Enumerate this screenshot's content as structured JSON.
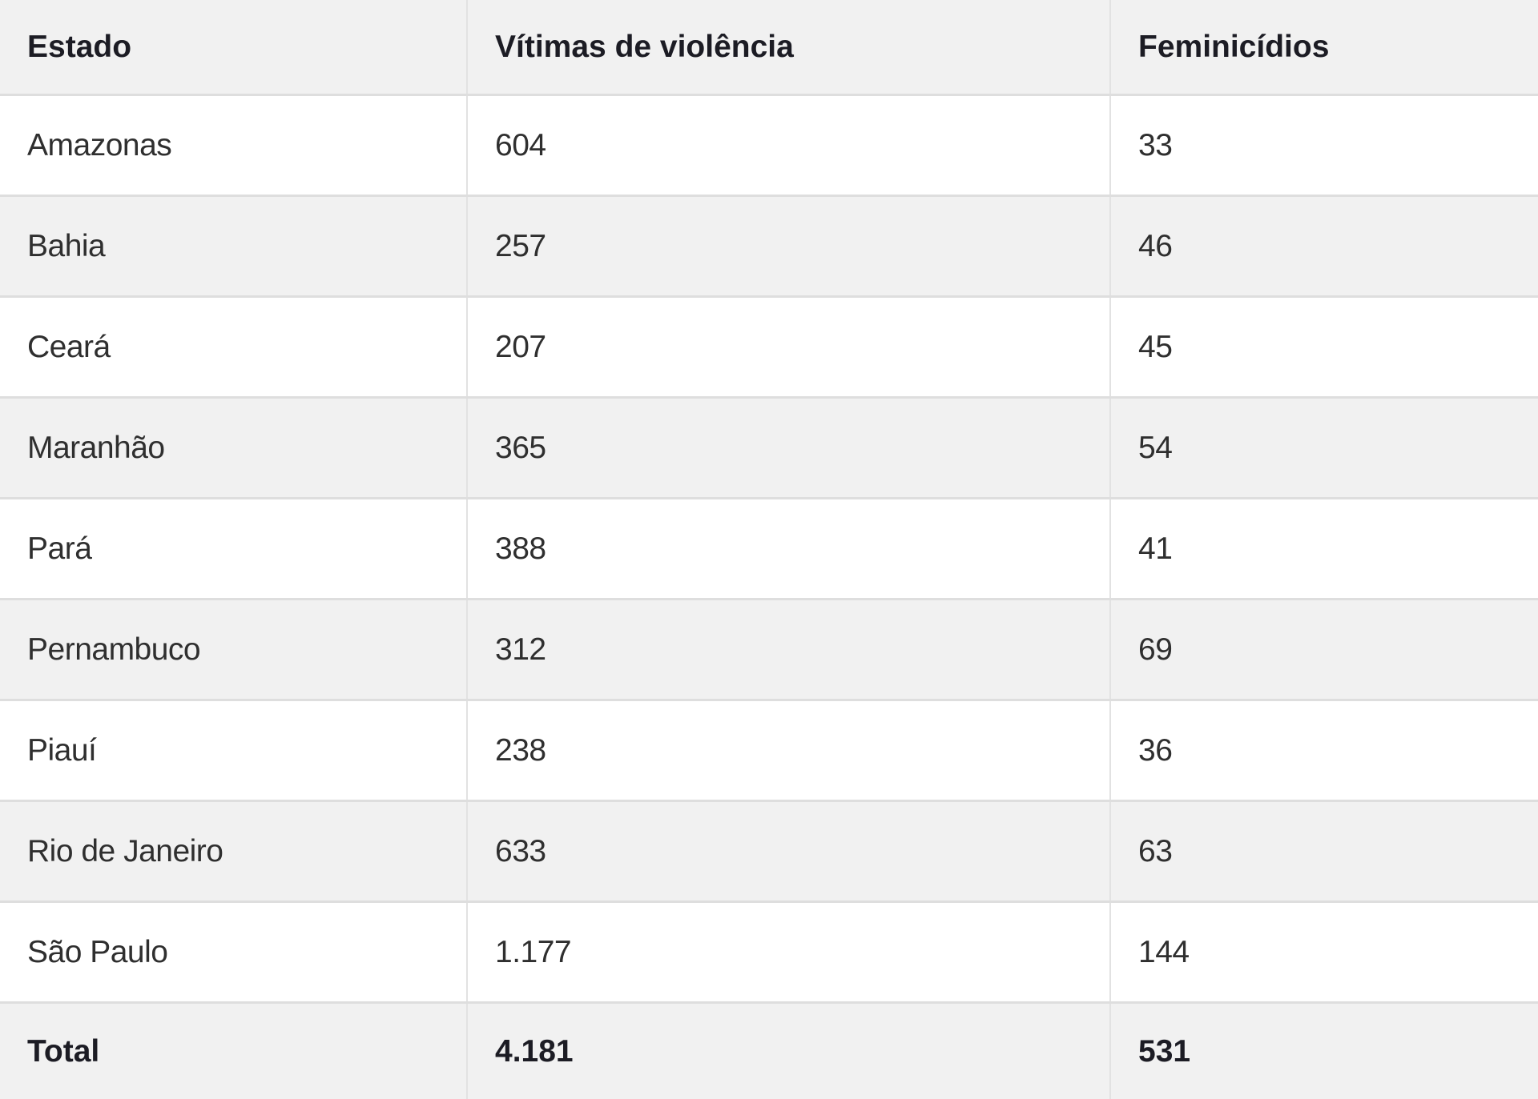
{
  "table": {
    "headers": [
      "Estado",
      "Vítimas de violência",
      "Feminicídios"
    ],
    "rows": [
      {
        "estado": "Amazonas",
        "vitimas": "604",
        "feminicidios": "33"
      },
      {
        "estado": "Bahia",
        "vitimas": "257",
        "feminicidios": "46"
      },
      {
        "estado": "Ceará",
        "vitimas": "207",
        "feminicidios": "45"
      },
      {
        "estado": "Maranhão",
        "vitimas": "365",
        "feminicidios": "54"
      },
      {
        "estado": "Pará",
        "vitimas": "388",
        "feminicidios": "41"
      },
      {
        "estado": "Pernambuco",
        "vitimas": "312",
        "feminicidios": "69"
      },
      {
        "estado": "Piauí",
        "vitimas": "238",
        "feminicidios": "36"
      },
      {
        "estado": "Rio de Janeiro",
        "vitimas": "633",
        "feminicidios": "63"
      },
      {
        "estado": "São Paulo",
        "vitimas": "1.177",
        "feminicidios": "144"
      }
    ],
    "total": {
      "estado": "Total",
      "vitimas": "4.181",
      "feminicidios": "531"
    }
  },
  "colors": {
    "header_bg": "#f1f1f1",
    "row_alt_bg": "#f1f1f1",
    "row_bg": "#ffffff",
    "border": "#dedede",
    "text": "#2f2f2f"
  }
}
